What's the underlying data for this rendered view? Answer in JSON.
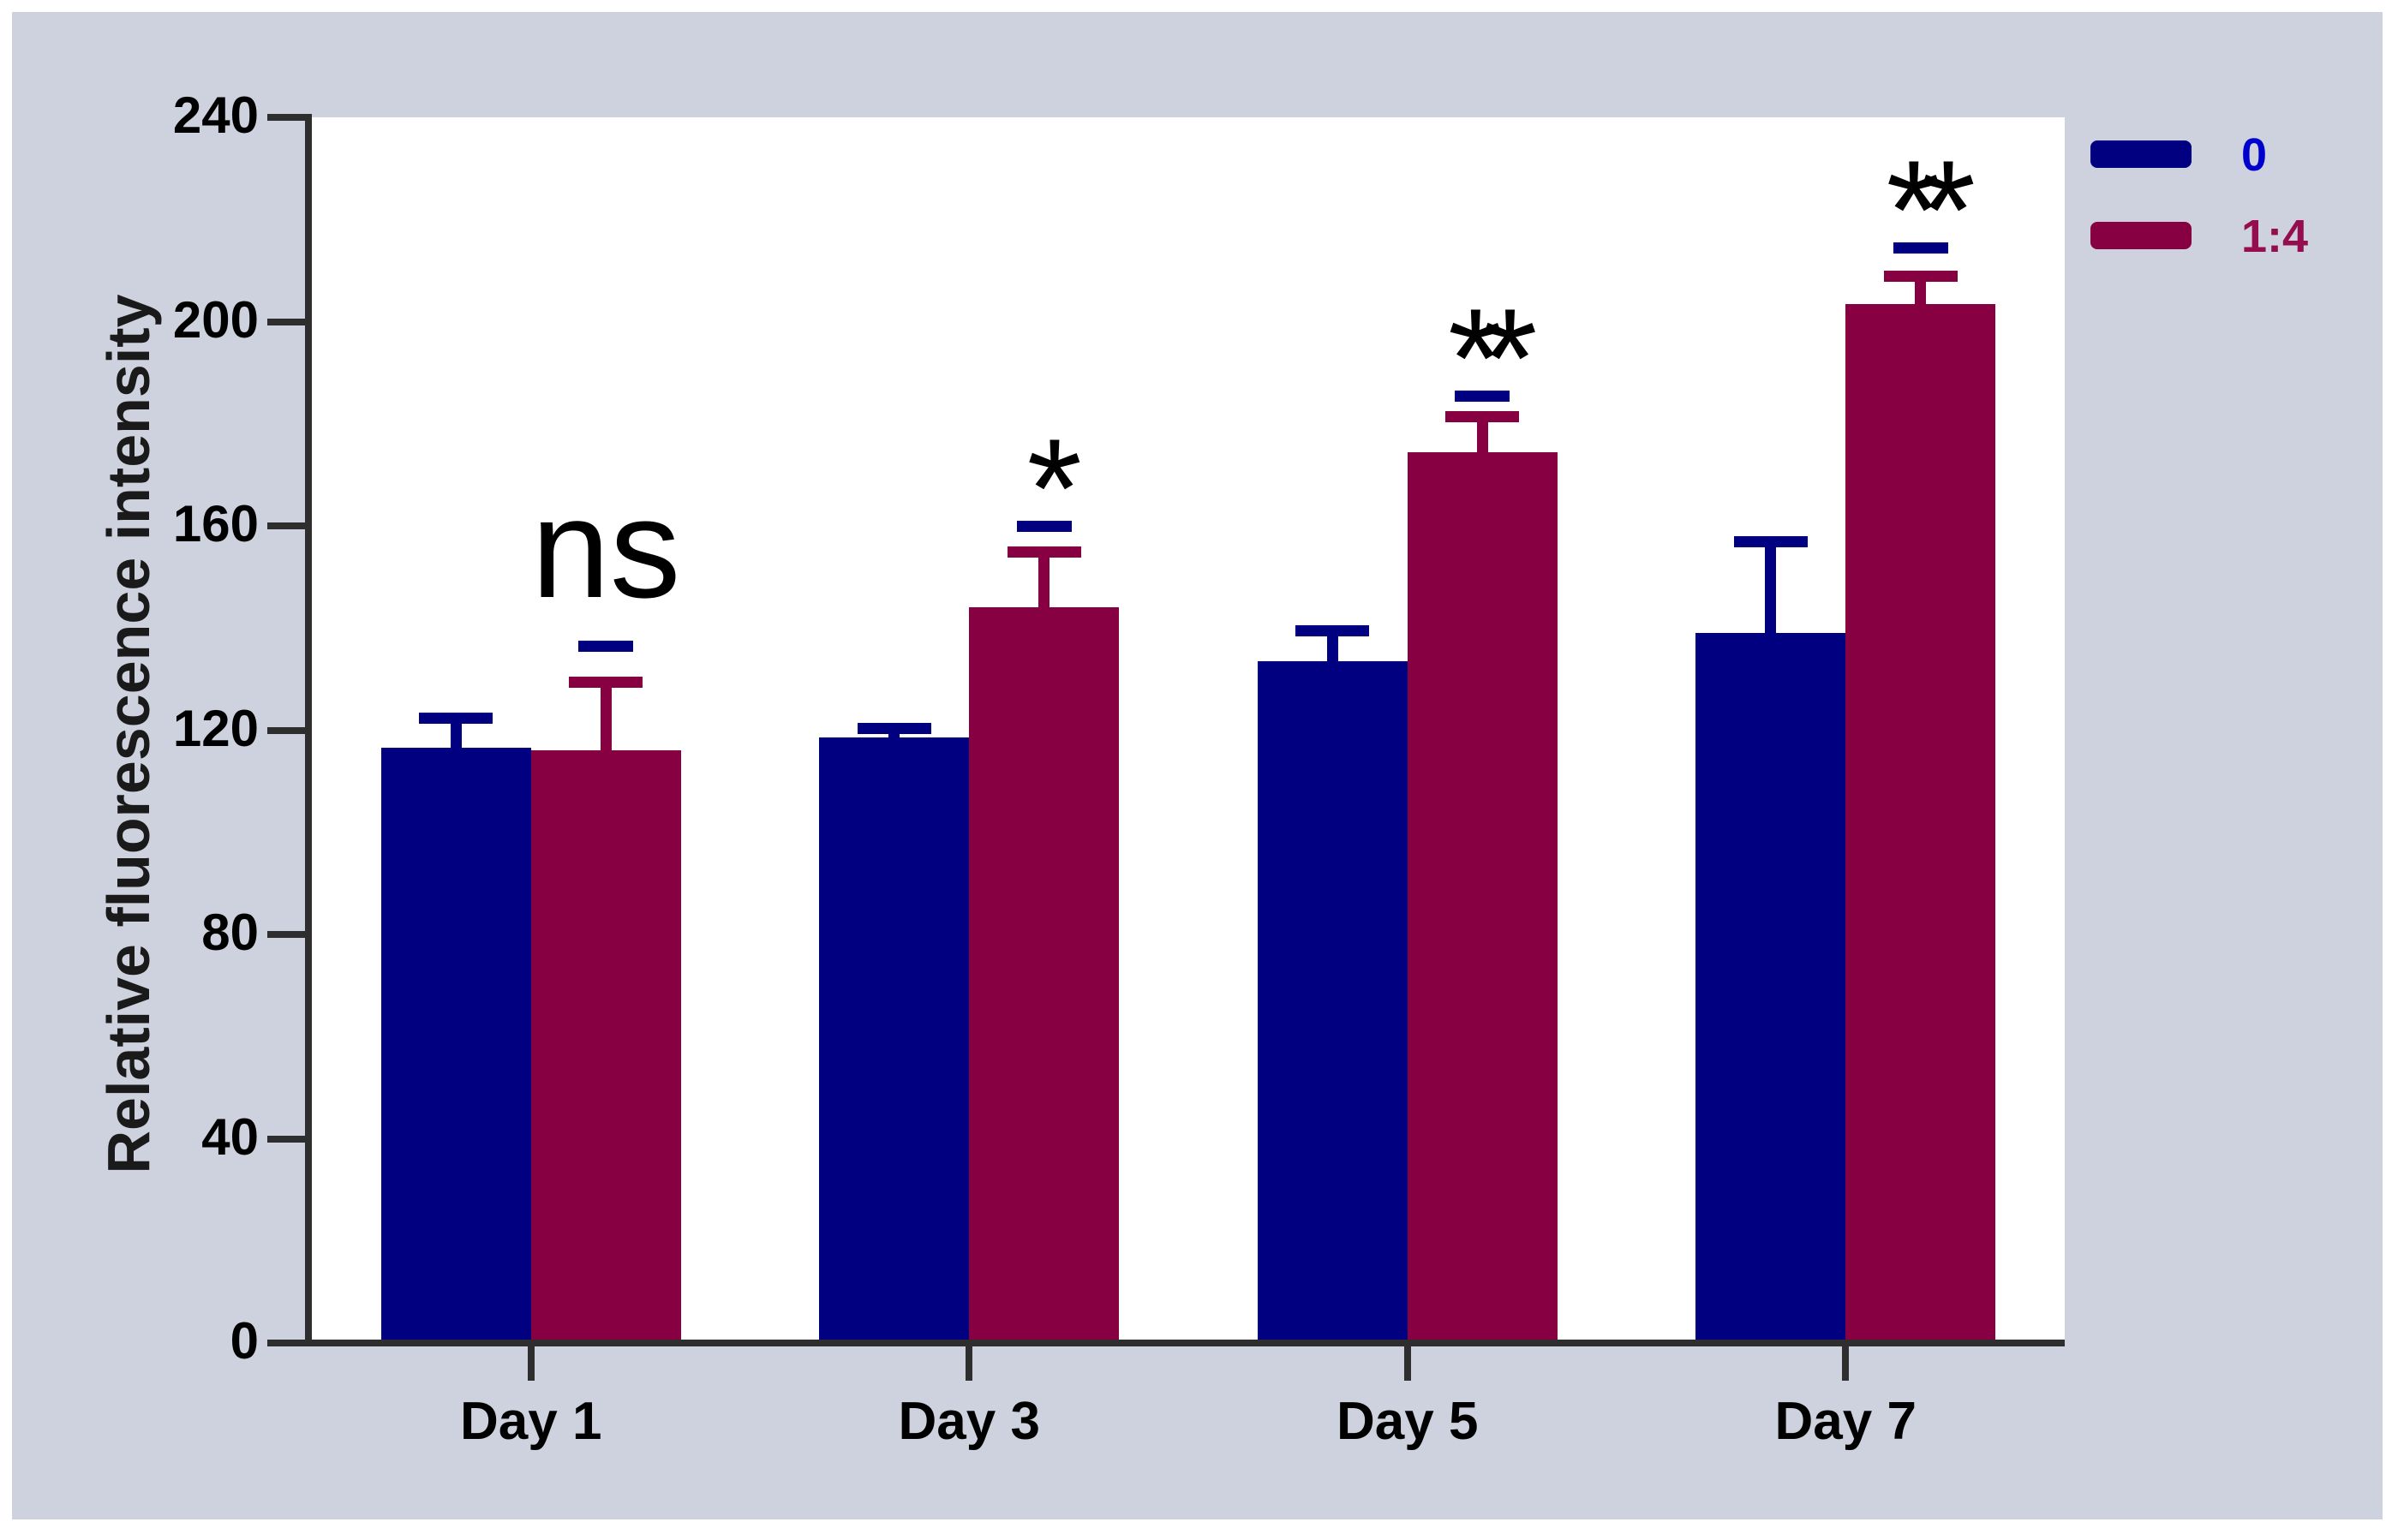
{
  "chart_data": {
    "type": "bar",
    "title": "",
    "xlabel": "",
    "ylabel": "Relative fluorescence intensity",
    "categories": [
      "Day 1",
      "Day 3",
      "Day 5",
      "Day 7"
    ],
    "series": [
      {
        "name": "0",
        "color": "#000080",
        "legend_text_color": "#0000cd",
        "values": [
          116.5,
          118.5,
          133.5,
          139
        ],
        "errors_plus": [
          7,
          3,
          7,
          19
        ]
      },
      {
        "name": "1:4",
        "color": "#860042",
        "legend_text_color": "#950d4e",
        "values": [
          116,
          144,
          174.5,
          203.5
        ],
        "errors_plus": [
          14.5,
          12,
          8,
          6.5
        ]
      }
    ],
    "significance": [
      {
        "category": "Day 1",
        "label": "ns",
        "line_value": 137.5
      },
      {
        "category": "Day 3",
        "label": "*",
        "line_value": 161
      },
      {
        "category": "Day 5",
        "label": "**",
        "line_value": 186.5
      },
      {
        "category": "Day 7",
        "label": "**",
        "line_value": 215.5
      }
    ],
    "sig_line_color": "#000080",
    "ylim": [
      0,
      240
    ],
    "yticks": [
      0,
      40,
      80,
      120,
      160,
      200,
      240
    ],
    "grid": false,
    "legend_position": "top-right",
    "colors": {
      "page_bg": "#ffffff",
      "panel_bg": "#cdd2de",
      "plot_bg": "#ffffff",
      "axis": "#2e2e2e",
      "text": "#000000"
    }
  }
}
